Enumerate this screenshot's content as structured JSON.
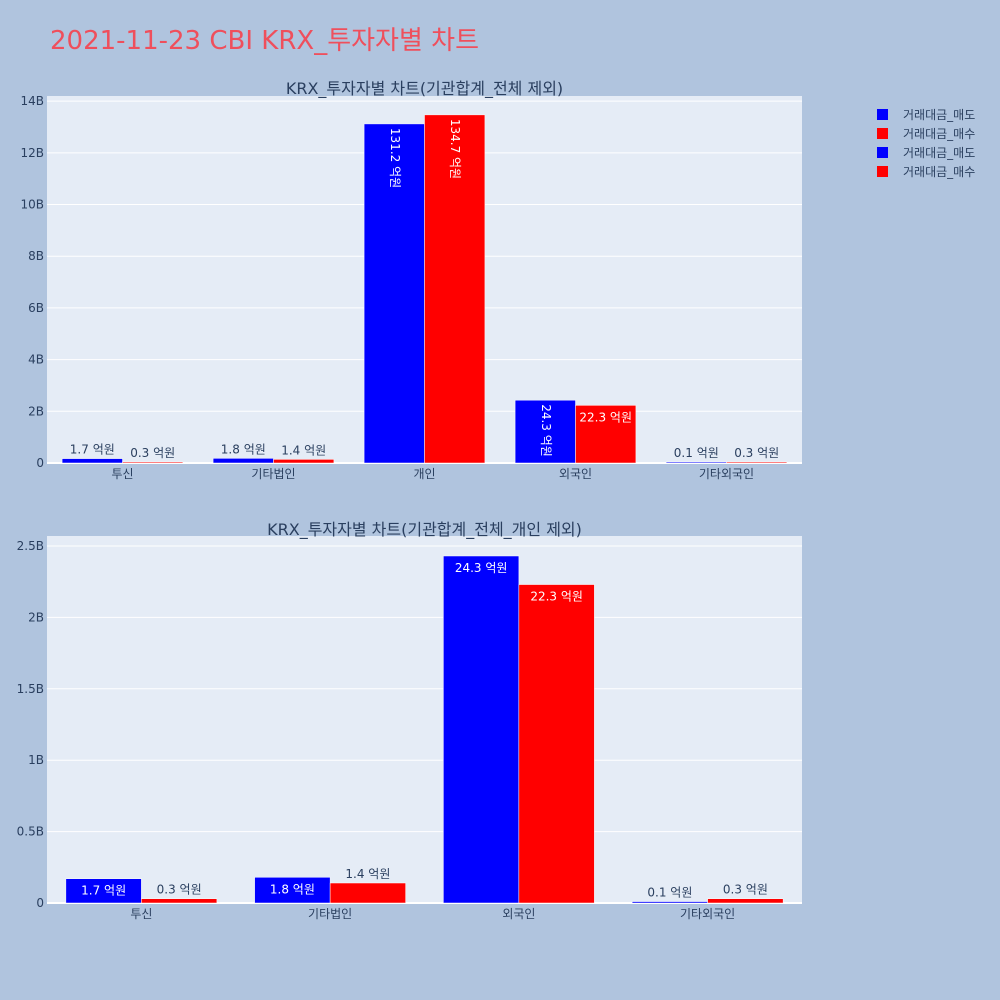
{
  "figure": {
    "title": "2021-11-23 CBI KRX_투자자별 차트",
    "title_color": "#ef4f5c",
    "background": "#b0c4de",
    "plot_background": "#e5ecf6",
    "sell_color": "#0000ff",
    "buy_color": "#ff0000"
  },
  "legend": {
    "placement": "top-right",
    "entries": [
      {
        "label": "거래대금_매도",
        "color": "#0000ff"
      },
      {
        "label": "거래대금_매수",
        "color": "#ff0000"
      },
      {
        "label": "거래대금_매도",
        "color": "#0000ff"
      },
      {
        "label": "거래대금_매수",
        "color": "#ff0000"
      }
    ]
  },
  "chart_data": [
    {
      "type": "bar",
      "title": "KRX_투자자별 차트(기관합계_전체 제외)",
      "categories": [
        "투신",
        "기타법인",
        "개인",
        "외국인",
        "기타외국인"
      ],
      "ylim": [
        0,
        14.2
      ],
      "yticks": [
        0,
        2,
        4,
        6,
        8,
        10,
        12,
        14
      ],
      "ytick_labels": [
        "0",
        "2B",
        "4B",
        "6B",
        "8B",
        "10B",
        "12B",
        "14B"
      ],
      "grid": true,
      "series": [
        {
          "name": "거래대금_매도",
          "color": "#0000ff",
          "values": [
            0.17,
            0.18,
            13.12,
            2.43,
            0.01
          ],
          "labels": [
            "1.7 억원",
            "1.8 억원",
            "131.2 억원",
            "24.3 억원",
            "0.1 억원"
          ],
          "label_mode": [
            "outside",
            "outside",
            "inside-vertical",
            "inside-vertical",
            "outside"
          ]
        },
        {
          "name": "거래대금_매수",
          "color": "#ff0000",
          "values": [
            0.03,
            0.14,
            13.47,
            2.23,
            0.03
          ],
          "labels": [
            "0.3 억원",
            "1.4 억원",
            "134.7 억원",
            "22.3 억원",
            "0.3 억원"
          ],
          "label_mode": [
            "outside",
            "outside",
            "inside-vertical",
            "inside",
            "outside"
          ]
        }
      ]
    },
    {
      "type": "bar",
      "title": "KRX_투자자별 차트(기관합계_전체_개인 제외)",
      "categories": [
        "투신",
        "기타법인",
        "외국인",
        "기타외국인"
      ],
      "ylim": [
        0,
        2.57
      ],
      "yticks": [
        0,
        0.5,
        1,
        1.5,
        2,
        2.5
      ],
      "ytick_labels": [
        "0",
        "0.5B",
        "1B",
        "1.5B",
        "2B",
        "2.5B"
      ],
      "grid": true,
      "series": [
        {
          "name": "거래대금_매도",
          "color": "#0000ff",
          "values": [
            0.17,
            0.18,
            2.43,
            0.01
          ],
          "labels": [
            "1.7 억원",
            "1.8 억원",
            "24.3 억원",
            "0.1 억원"
          ],
          "label_mode": [
            "inside",
            "inside",
            "inside",
            "outside"
          ]
        },
        {
          "name": "거래대금_매수",
          "color": "#ff0000",
          "values": [
            0.03,
            0.14,
            2.23,
            0.03
          ],
          "labels": [
            "0.3 억원",
            "1.4 억원",
            "22.3 억원",
            "0.3 억원"
          ],
          "label_mode": [
            "outside",
            "outside",
            "inside",
            "outside"
          ]
        }
      ]
    }
  ]
}
